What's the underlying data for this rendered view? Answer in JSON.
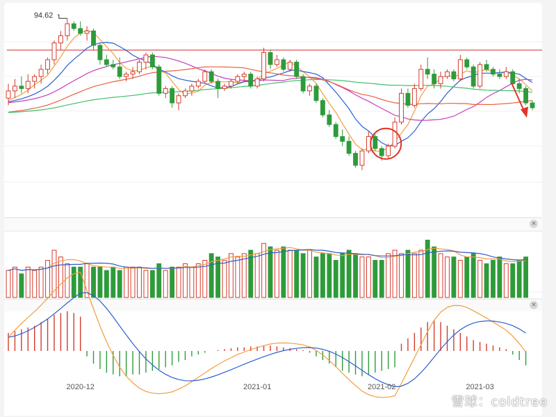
{
  "chart_data": [
    {
      "type": "candlestick",
      "title": "",
      "max_label": "94.62",
      "x_labels": [
        "2020-12",
        "2021-01",
        "2021-02",
        "2021-03"
      ],
      "y_range": [
        55,
        97
      ],
      "resistance_level": 88.0,
      "candles": [
        {
          "o": 78.0,
          "h": 81.0,
          "l": 76.5,
          "c": 79.5
        },
        {
          "o": 79.5,
          "h": 82.0,
          "l": 78.0,
          "c": 80.5
        },
        {
          "o": 80.5,
          "h": 82.5,
          "l": 79.0,
          "c": 80.0
        },
        {
          "o": 80.0,
          "h": 83.0,
          "l": 79.0,
          "c": 81.5
        },
        {
          "o": 81.5,
          "h": 83.0,
          "l": 80.0,
          "c": 82.5
        },
        {
          "o": 82.5,
          "h": 85.0,
          "l": 81.0,
          "c": 84.0
        },
        {
          "o": 84.0,
          "h": 86.5,
          "l": 83.0,
          "c": 86.0
        },
        {
          "o": 86.0,
          "h": 90.0,
          "l": 85.0,
          "c": 89.5
        },
        {
          "o": 89.5,
          "h": 92.0,
          "l": 88.0,
          "c": 91.0
        },
        {
          "o": 91.0,
          "h": 94.62,
          "l": 90.0,
          "c": 93.5
        },
        {
          "o": 93.5,
          "h": 94.0,
          "l": 92.0,
          "c": 92.5
        },
        {
          "o": 92.5,
          "h": 94.0,
          "l": 91.0,
          "c": 91.5
        },
        {
          "o": 91.5,
          "h": 93.0,
          "l": 90.0,
          "c": 92.0
        },
        {
          "o": 92.0,
          "h": 92.5,
          "l": 88.0,
          "c": 89.0
        },
        {
          "o": 89.0,
          "h": 89.5,
          "l": 85.0,
          "c": 86.0
        },
        {
          "o": 86.0,
          "h": 87.0,
          "l": 84.5,
          "c": 85.0
        },
        {
          "o": 85.0,
          "h": 86.0,
          "l": 84.0,
          "c": 84.5
        },
        {
          "o": 84.5,
          "h": 86.5,
          "l": 82.0,
          "c": 82.5
        },
        {
          "o": 82.5,
          "h": 83.5,
          "l": 81.5,
          "c": 83.0
        },
        {
          "o": 83.0,
          "h": 84.5,
          "l": 82.0,
          "c": 83.5
        },
        {
          "o": 83.5,
          "h": 86.0,
          "l": 83.0,
          "c": 85.5
        },
        {
          "o": 85.5,
          "h": 87.5,
          "l": 84.0,
          "c": 87.0
        },
        {
          "o": 87.0,
          "h": 87.5,
          "l": 84.0,
          "c": 84.5
        },
        {
          "o": 84.5,
          "h": 85.0,
          "l": 78.5,
          "c": 79.0
        },
        {
          "o": 79.0,
          "h": 80.5,
          "l": 78.0,
          "c": 80.0
        },
        {
          "o": 80.0,
          "h": 80.5,
          "l": 76.0,
          "c": 77.0
        },
        {
          "o": 77.0,
          "h": 79.0,
          "l": 75.5,
          "c": 78.5
        },
        {
          "o": 78.5,
          "h": 80.0,
          "l": 78.0,
          "c": 79.5
        },
        {
          "o": 79.5,
          "h": 81.0,
          "l": 78.5,
          "c": 80.5
        },
        {
          "o": 80.5,
          "h": 82.0,
          "l": 80.0,
          "c": 81.5
        },
        {
          "o": 81.5,
          "h": 84.0,
          "l": 81.0,
          "c": 83.5
        },
        {
          "o": 83.5,
          "h": 84.0,
          "l": 81.0,
          "c": 81.5
        },
        {
          "o": 81.5,
          "h": 82.0,
          "l": 78.0,
          "c": 80.0
        },
        {
          "o": 80.0,
          "h": 81.0,
          "l": 79.5,
          "c": 80.5
        },
        {
          "o": 80.5,
          "h": 82.0,
          "l": 80.0,
          "c": 81.5
        },
        {
          "o": 81.5,
          "h": 83.0,
          "l": 81.0,
          "c": 82.5
        },
        {
          "o": 82.5,
          "h": 83.5,
          "l": 81.5,
          "c": 83.0
        },
        {
          "o": 83.0,
          "h": 83.5,
          "l": 80.0,
          "c": 80.5
        },
        {
          "o": 80.5,
          "h": 82.5,
          "l": 80.0,
          "c": 82.0
        },
        {
          "o": 82.0,
          "h": 88.5,
          "l": 81.5,
          "c": 87.5
        },
        {
          "o": 87.5,
          "h": 88.0,
          "l": 84.0,
          "c": 85.0
        },
        {
          "o": 85.0,
          "h": 87.0,
          "l": 84.5,
          "c": 86.0
        },
        {
          "o": 86.0,
          "h": 86.5,
          "l": 83.5,
          "c": 84.0
        },
        {
          "o": 84.0,
          "h": 86.0,
          "l": 83.5,
          "c": 85.5
        },
        {
          "o": 85.5,
          "h": 86.0,
          "l": 82.0,
          "c": 82.5
        },
        {
          "o": 82.5,
          "h": 83.0,
          "l": 79.0,
          "c": 79.5
        },
        {
          "o": 79.5,
          "h": 81.0,
          "l": 78.5,
          "c": 80.5
        },
        {
          "o": 80.5,
          "h": 81.0,
          "l": 77.0,
          "c": 77.5
        },
        {
          "o": 77.5,
          "h": 78.0,
          "l": 74.0,
          "c": 74.5
        },
        {
          "o": 74.5,
          "h": 75.5,
          "l": 72.0,
          "c": 72.5
        },
        {
          "o": 72.5,
          "h": 73.0,
          "l": 69.5,
          "c": 70.0
        },
        {
          "o": 70.0,
          "h": 71.5,
          "l": 68.0,
          "c": 69.0
        },
        {
          "o": 69.0,
          "h": 70.0,
          "l": 66.0,
          "c": 66.5
        },
        {
          "o": 66.5,
          "h": 67.0,
          "l": 63.5,
          "c": 64.0
        },
        {
          "o": 64.0,
          "h": 67.5,
          "l": 63.0,
          "c": 67.0
        },
        {
          "o": 67.0,
          "h": 71.0,
          "l": 66.5,
          "c": 70.0
        },
        {
          "o": 70.0,
          "h": 70.5,
          "l": 67.0,
          "c": 67.5
        },
        {
          "o": 67.5,
          "h": 68.0,
          "l": 65.0,
          "c": 66.0
        },
        {
          "o": 66.0,
          "h": 68.5,
          "l": 65.5,
          "c": 68.0
        },
        {
          "o": 68.0,
          "h": 74.0,
          "l": 67.5,
          "c": 73.0
        },
        {
          "o": 73.0,
          "h": 80.0,
          "l": 72.5,
          "c": 79.0
        },
        {
          "o": 79.0,
          "h": 80.0,
          "l": 76.0,
          "c": 76.5
        },
        {
          "o": 76.5,
          "h": 81.0,
          "l": 76.0,
          "c": 80.0
        },
        {
          "o": 80.0,
          "h": 85.0,
          "l": 79.5,
          "c": 84.0
        },
        {
          "o": 84.0,
          "h": 86.5,
          "l": 82.0,
          "c": 83.0
        },
        {
          "o": 83.0,
          "h": 84.0,
          "l": 80.0,
          "c": 81.0
        },
        {
          "o": 81.0,
          "h": 83.5,
          "l": 80.0,
          "c": 82.5
        },
        {
          "o": 82.5,
          "h": 84.0,
          "l": 82.0,
          "c": 83.5
        },
        {
          "o": 83.5,
          "h": 84.0,
          "l": 81.5,
          "c": 82.0
        },
        {
          "o": 82.0,
          "h": 87.0,
          "l": 81.5,
          "c": 86.0
        },
        {
          "o": 86.0,
          "h": 86.5,
          "l": 84.0,
          "c": 84.5
        },
        {
          "o": 84.5,
          "h": 85.0,
          "l": 80.0,
          "c": 80.5
        },
        {
          "o": 80.5,
          "h": 85.5,
          "l": 80.0,
          "c": 85.0
        },
        {
          "o": 85.0,
          "h": 86.0,
          "l": 83.5,
          "c": 84.0
        },
        {
          "o": 84.0,
          "h": 84.5,
          "l": 82.5,
          "c": 83.0
        },
        {
          "o": 83.0,
          "h": 84.0,
          "l": 82.0,
          "c": 82.5
        },
        {
          "o": 82.5,
          "h": 84.5,
          "l": 82.0,
          "c": 83.5
        },
        {
          "o": 83.5,
          "h": 84.0,
          "l": 80.5,
          "c": 81.0
        },
        {
          "o": 81.0,
          "h": 82.0,
          "l": 79.0,
          "c": 80.0
        },
        {
          "o": 80.0,
          "h": 80.5,
          "l": 76.5,
          "c": 77.0
        },
        {
          "o": 77.0,
          "h": 77.5,
          "l": 75.5,
          "c": 76.0
        }
      ],
      "volume": [
        8,
        9,
        7,
        9,
        8,
        9,
        11,
        14,
        12,
        10,
        9,
        9,
        10,
        9,
        9,
        8,
        9,
        8,
        9,
        9,
        9,
        8,
        8,
        10,
        8,
        9,
        9,
        10,
        9,
        10,
        11,
        13,
        12,
        11,
        13,
        12,
        13,
        14,
        13,
        16,
        15,
        14,
        15,
        14,
        14,
        13,
        14,
        12,
        13,
        13,
        11,
        13,
        14,
        13,
        12,
        12,
        11,
        11,
        13,
        14,
        13,
        14,
        13,
        14,
        17,
        15,
        13,
        12,
        12,
        11,
        12,
        13,
        11,
        10,
        11,
        12,
        10,
        10,
        11,
        12
      ],
      "macd_hist": [
        1.0,
        1.1,
        1.2,
        1.3,
        1.4,
        1.6,
        1.8,
        2.0,
        2.1,
        2.2,
        2.1,
        1.9,
        -0.3,
        -0.7,
        -1.0,
        -1.2,
        -1.3,
        -1.4,
        -1.4,
        -1.3,
        -1.3,
        -1.2,
        -1.1,
        -1.0,
        -0.9,
        -0.8,
        -0.6,
        -0.5,
        -0.3,
        -0.2,
        -0.1,
        0.0,
        0.05,
        0.1,
        0.15,
        0.2,
        0.2,
        0.25,
        0.25,
        0.3,
        0.3,
        0.25,
        0.2,
        0.15,
        0.1,
        0.05,
        -0.1,
        -0.3,
        -0.5,
        -0.7,
        -0.9,
        -1.1,
        -1.2,
        -1.3,
        -1.4,
        -1.3,
        -1.2,
        -1.1,
        -1.0,
        -0.9,
        0.4,
        0.7,
        1.0,
        1.3,
        1.6,
        1.7,
        1.6,
        1.4,
        1.2,
        1.0,
        0.8,
        0.6,
        0.5,
        0.4,
        0.3,
        0.2,
        0.1,
        -0.2,
        -0.5,
        -0.8
      ],
      "colors": {
        "up": "#d33a2c",
        "down": "#2e9b3a",
        "ma5": "#f39c3d",
        "ma10": "#2a5fd0",
        "ma20": "#c83cbf",
        "ma30": "#e8603c",
        "ma60": "#3fbf6a",
        "resistance": "#e88e8e",
        "annotation": "#e03526"
      }
    }
  ],
  "watermark": "雪球：coldtree"
}
